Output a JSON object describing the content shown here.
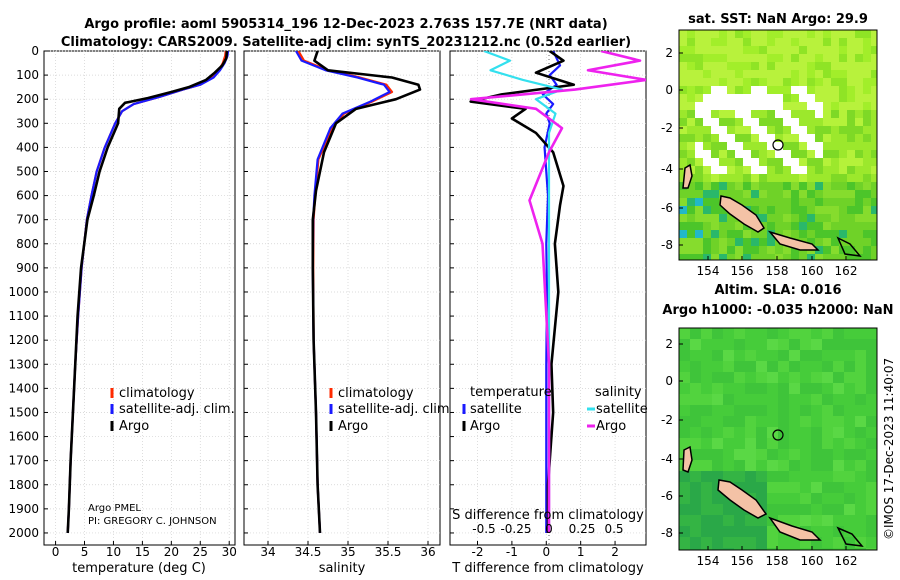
{
  "header": {
    "line1": "Argo profile: aoml 5905314_196 12-Dec-2023 2.763S 157.7E (NRT data)",
    "line2": "Climatology: CARS2009. Satellite-adj clim: synTS_20231212.nc (0.52d earlier)"
  },
  "colors": {
    "clim": "#ff2a00",
    "sat": "#1a1aff",
    "argo": "#000000",
    "sat_s": "#33e0ee",
    "argo_s": "#ee22ee"
  },
  "chart_data": [
    {
      "type": "line",
      "title": "",
      "xlabel": "temperature (deg C)",
      "ylabel": "",
      "xlim": [
        -2,
        31
      ],
      "ylim": [
        2050,
        0
      ],
      "xticks": [
        "0",
        "5",
        "10",
        "15",
        "20",
        "25",
        "30"
      ],
      "yticks": [
        "0",
        "100",
        "200",
        "300",
        "400",
        "500",
        "600",
        "700",
        "800",
        "900",
        "1000",
        "1100",
        "1200",
        "1300",
        "1400",
        "1500",
        "1600",
        "1700",
        "1800",
        "1900",
        "2000"
      ],
      "legend": [
        "climatology",
        "satellite-adj. clim.",
        "Argo"
      ],
      "annotation1": "Argo PMEL",
      "annotation2": "PI: GREGORY C. JOHNSON",
      "series": [
        {
          "name": "climatology",
          "color": "#ff2a00",
          "x": [
            29.4,
            29.3,
            28.9,
            28.2,
            27,
            25,
            22,
            18,
            13.5,
            11.5,
            10.3,
            8.5,
            7.1,
            6.2,
            5.4,
            4.5,
            3.9,
            3.4,
            3.0,
            2.6,
            2.3,
            2.1
          ],
          "y": [
            0,
            20,
            50,
            80,
            110,
            140,
            160,
            190,
            220,
            250,
            300,
            400,
            500,
            600,
            700,
            900,
            1100,
            1300,
            1500,
            1700,
            1900,
            2000
          ]
        },
        {
          "name": "satellite-adj. clim.",
          "color": "#1a1aff",
          "x": [
            29.8,
            29.7,
            29.2,
            28.4,
            27.3,
            25,
            22,
            18,
            13.5,
            11.5,
            10.3,
            8.5,
            7.1,
            6.2,
            5.4,
            4.5,
            3.9,
            3.4,
            3.0,
            2.6,
            2.3,
            2.1
          ],
          "y": [
            0,
            20,
            50,
            80,
            110,
            140,
            160,
            190,
            220,
            250,
            300,
            400,
            500,
            600,
            700,
            900,
            1100,
            1300,
            1500,
            1700,
            1900,
            2000
          ]
        },
        {
          "name": "Argo",
          "color": "#000000",
          "x": [
            29.6,
            29.5,
            28.8,
            27.5,
            26,
            23,
            20,
            16,
            12,
            11,
            10.8,
            9,
            7.6,
            6.6,
            5.5,
            4.4,
            3.8,
            3.4,
            3.0,
            2.6,
            2.3,
            2.1
          ],
          "y": [
            0,
            30,
            60,
            90,
            120,
            150,
            170,
            195,
            215,
            240,
            300,
            400,
            500,
            600,
            700,
            900,
            1100,
            1300,
            1500,
            1700,
            1900,
            2000
          ]
        }
      ]
    },
    {
      "type": "line",
      "title": "",
      "xlabel": "salinity",
      "ylabel": "",
      "xlim": [
        33.7,
        36.15
      ],
      "ylim": [
        2050,
        0
      ],
      "xticks": [
        "34",
        "34.5",
        "35",
        "35.5",
        "36"
      ],
      "legend": [
        "climatology",
        "satellite-adj. clim.",
        "Argo"
      ],
      "series": [
        {
          "name": "climatology",
          "color": "#ff2a00",
          "x": [
            34.38,
            34.45,
            34.75,
            35.15,
            35.48,
            35.55,
            35.3,
            34.95,
            34.8,
            34.63,
            34.59,
            34.57,
            34.565,
            34.57,
            34.6,
            34.62,
            34.65
          ],
          "y": [
            0,
            40,
            80,
            110,
            140,
            170,
            210,
            260,
            320,
            450,
            600,
            700,
            900,
            1200,
            1500,
            1800,
            2000
          ]
        },
        {
          "name": "satellite-adj. clim.",
          "color": "#1a1aff",
          "x": [
            34.35,
            34.42,
            34.72,
            35.12,
            35.45,
            35.52,
            35.28,
            34.93,
            34.78,
            34.62,
            34.58,
            34.565,
            34.56,
            34.57,
            34.6,
            34.62,
            34.65
          ],
          "y": [
            0,
            40,
            80,
            110,
            140,
            170,
            210,
            260,
            320,
            450,
            600,
            700,
            900,
            1200,
            1500,
            1800,
            2000
          ]
        },
        {
          "name": "Argo",
          "color": "#000000",
          "x": [
            34.62,
            34.58,
            34.75,
            35.55,
            35.88,
            35.9,
            35.6,
            35.1,
            34.85,
            34.7,
            34.6,
            34.56,
            34.56,
            34.57,
            34.6,
            34.62,
            34.65
          ],
          "y": [
            0,
            40,
            80,
            110,
            140,
            160,
            200,
            240,
            300,
            420,
            580,
            700,
            900,
            1200,
            1500,
            1800,
            2000
          ]
        }
      ]
    },
    {
      "type": "line",
      "title": "",
      "xlabel": "T difference from climatology",
      "xlabel2": "S difference from climatology",
      "ylabel": "",
      "xlim": [
        -2.8,
        2.9
      ],
      "ylim": [
        2050,
        0
      ],
      "xticks": [
        "-2",
        "-1",
        "0",
        "1",
        "2"
      ],
      "xticks_s": [
        "-0.5",
        "-0.25",
        "0",
        "0.25",
        "0.5"
      ],
      "legend_t_title": "temperature",
      "legend_s_title": "salinity",
      "legend": [
        "satellite",
        "Argo",
        "satellite",
        "Argo"
      ],
      "series": [
        {
          "name": "satellite T",
          "color": "#1a1aff",
          "x": [
            0.2,
            0.4,
            0.1,
            0.3,
            -0.1,
            0.2,
            0.0,
            0.1,
            -0.05,
            0.05,
            0.0,
            0.02,
            0.0,
            0.0,
            0.0,
            0.0
          ],
          "y": [
            0,
            60,
            100,
            140,
            180,
            220,
            260,
            300,
            400,
            600,
            800,
            1000,
            1300,
            1600,
            1900,
            2000
          ]
        },
        {
          "name": "Argo T",
          "color": "#000000",
          "x": [
            0.1,
            0.5,
            -0.3,
            0.8,
            -1.3,
            -2.2,
            -0.6,
            -1.0,
            -0.3,
            0.2,
            0.5,
            0.4,
            0.25,
            0.35,
            0.15,
            0.2,
            0.05,
            0.05
          ],
          "y": [
            0,
            40,
            90,
            140,
            180,
            210,
            240,
            280,
            340,
            420,
            560,
            640,
            800,
            1000,
            1300,
            1500,
            1800,
            2000
          ]
        },
        {
          "name": "satellite S",
          "color": "#33e0ee",
          "x": [
            -0.5,
            -0.3,
            -0.45,
            -0.2,
            0.1,
            -0.1,
            0.05,
            0.0,
            0.0,
            0.0,
            0.0
          ],
          "y": [
            0,
            40,
            80,
            120,
            160,
            200,
            260,
            340,
            500,
            1000,
            2000
          ]
        },
        {
          "name": "Argo S",
          "color": "#ee22ee",
          "x": [
            0.4,
            0.7,
            0.3,
            0.75,
            0.2,
            -0.6,
            -0.1,
            0.1,
            0.0,
            -0.15,
            -0.05,
            0.0,
            0.0
          ],
          "y": [
            0,
            40,
            80,
            120,
            160,
            200,
            240,
            320,
            420,
            620,
            800,
            1300,
            2000
          ]
        }
      ]
    }
  ],
  "maps": {
    "sst": {
      "title": "sat. SST: NaN Argo: 29.9",
      "xticks": [
        "154",
        "156",
        "158",
        "160",
        "162"
      ],
      "yticks": [
        "2",
        "0",
        "-2",
        "-4",
        "-6",
        "-8"
      ]
    },
    "sla": {
      "title1": "Altim. SLA: 0.016",
      "title2": "Argo h1000: -0.035 h2000: NaN",
      "xticks": [
        "154",
        "156",
        "158",
        "160",
        "162"
      ],
      "yticks": [
        "2",
        "0",
        "-2",
        "-4",
        "-6",
        "-8"
      ]
    }
  },
  "footer": {
    "stamp": "©IMOS 17-Dec-2023 11:40:07"
  }
}
